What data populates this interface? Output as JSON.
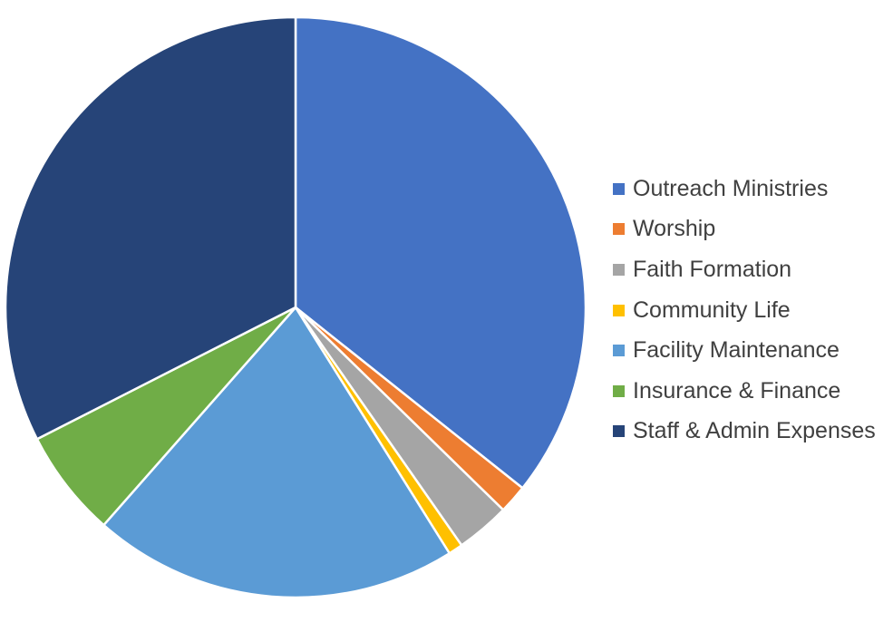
{
  "chart_data": {
    "type": "pie",
    "title": "",
    "categories": [
      "Outreach Ministries",
      "Worship",
      "Faith Formation",
      "Community Life",
      "Facility Maintenance",
      "Insurance & Finance",
      "Staff & Admin Expenses"
    ],
    "values": [
      35.7,
      1.6,
      3.0,
      0.8,
      20.4,
      6.0,
      32.5
    ],
    "unit": "percent",
    "colors": [
      "#4472C4",
      "#ED7D31",
      "#A5A5A5",
      "#FFC000",
      "#5B9BD5",
      "#70AD47",
      "#264478"
    ],
    "start_angle": "12 o'clock",
    "direction": "clockwise",
    "legend_position": "right",
    "data_labels": false
  }
}
